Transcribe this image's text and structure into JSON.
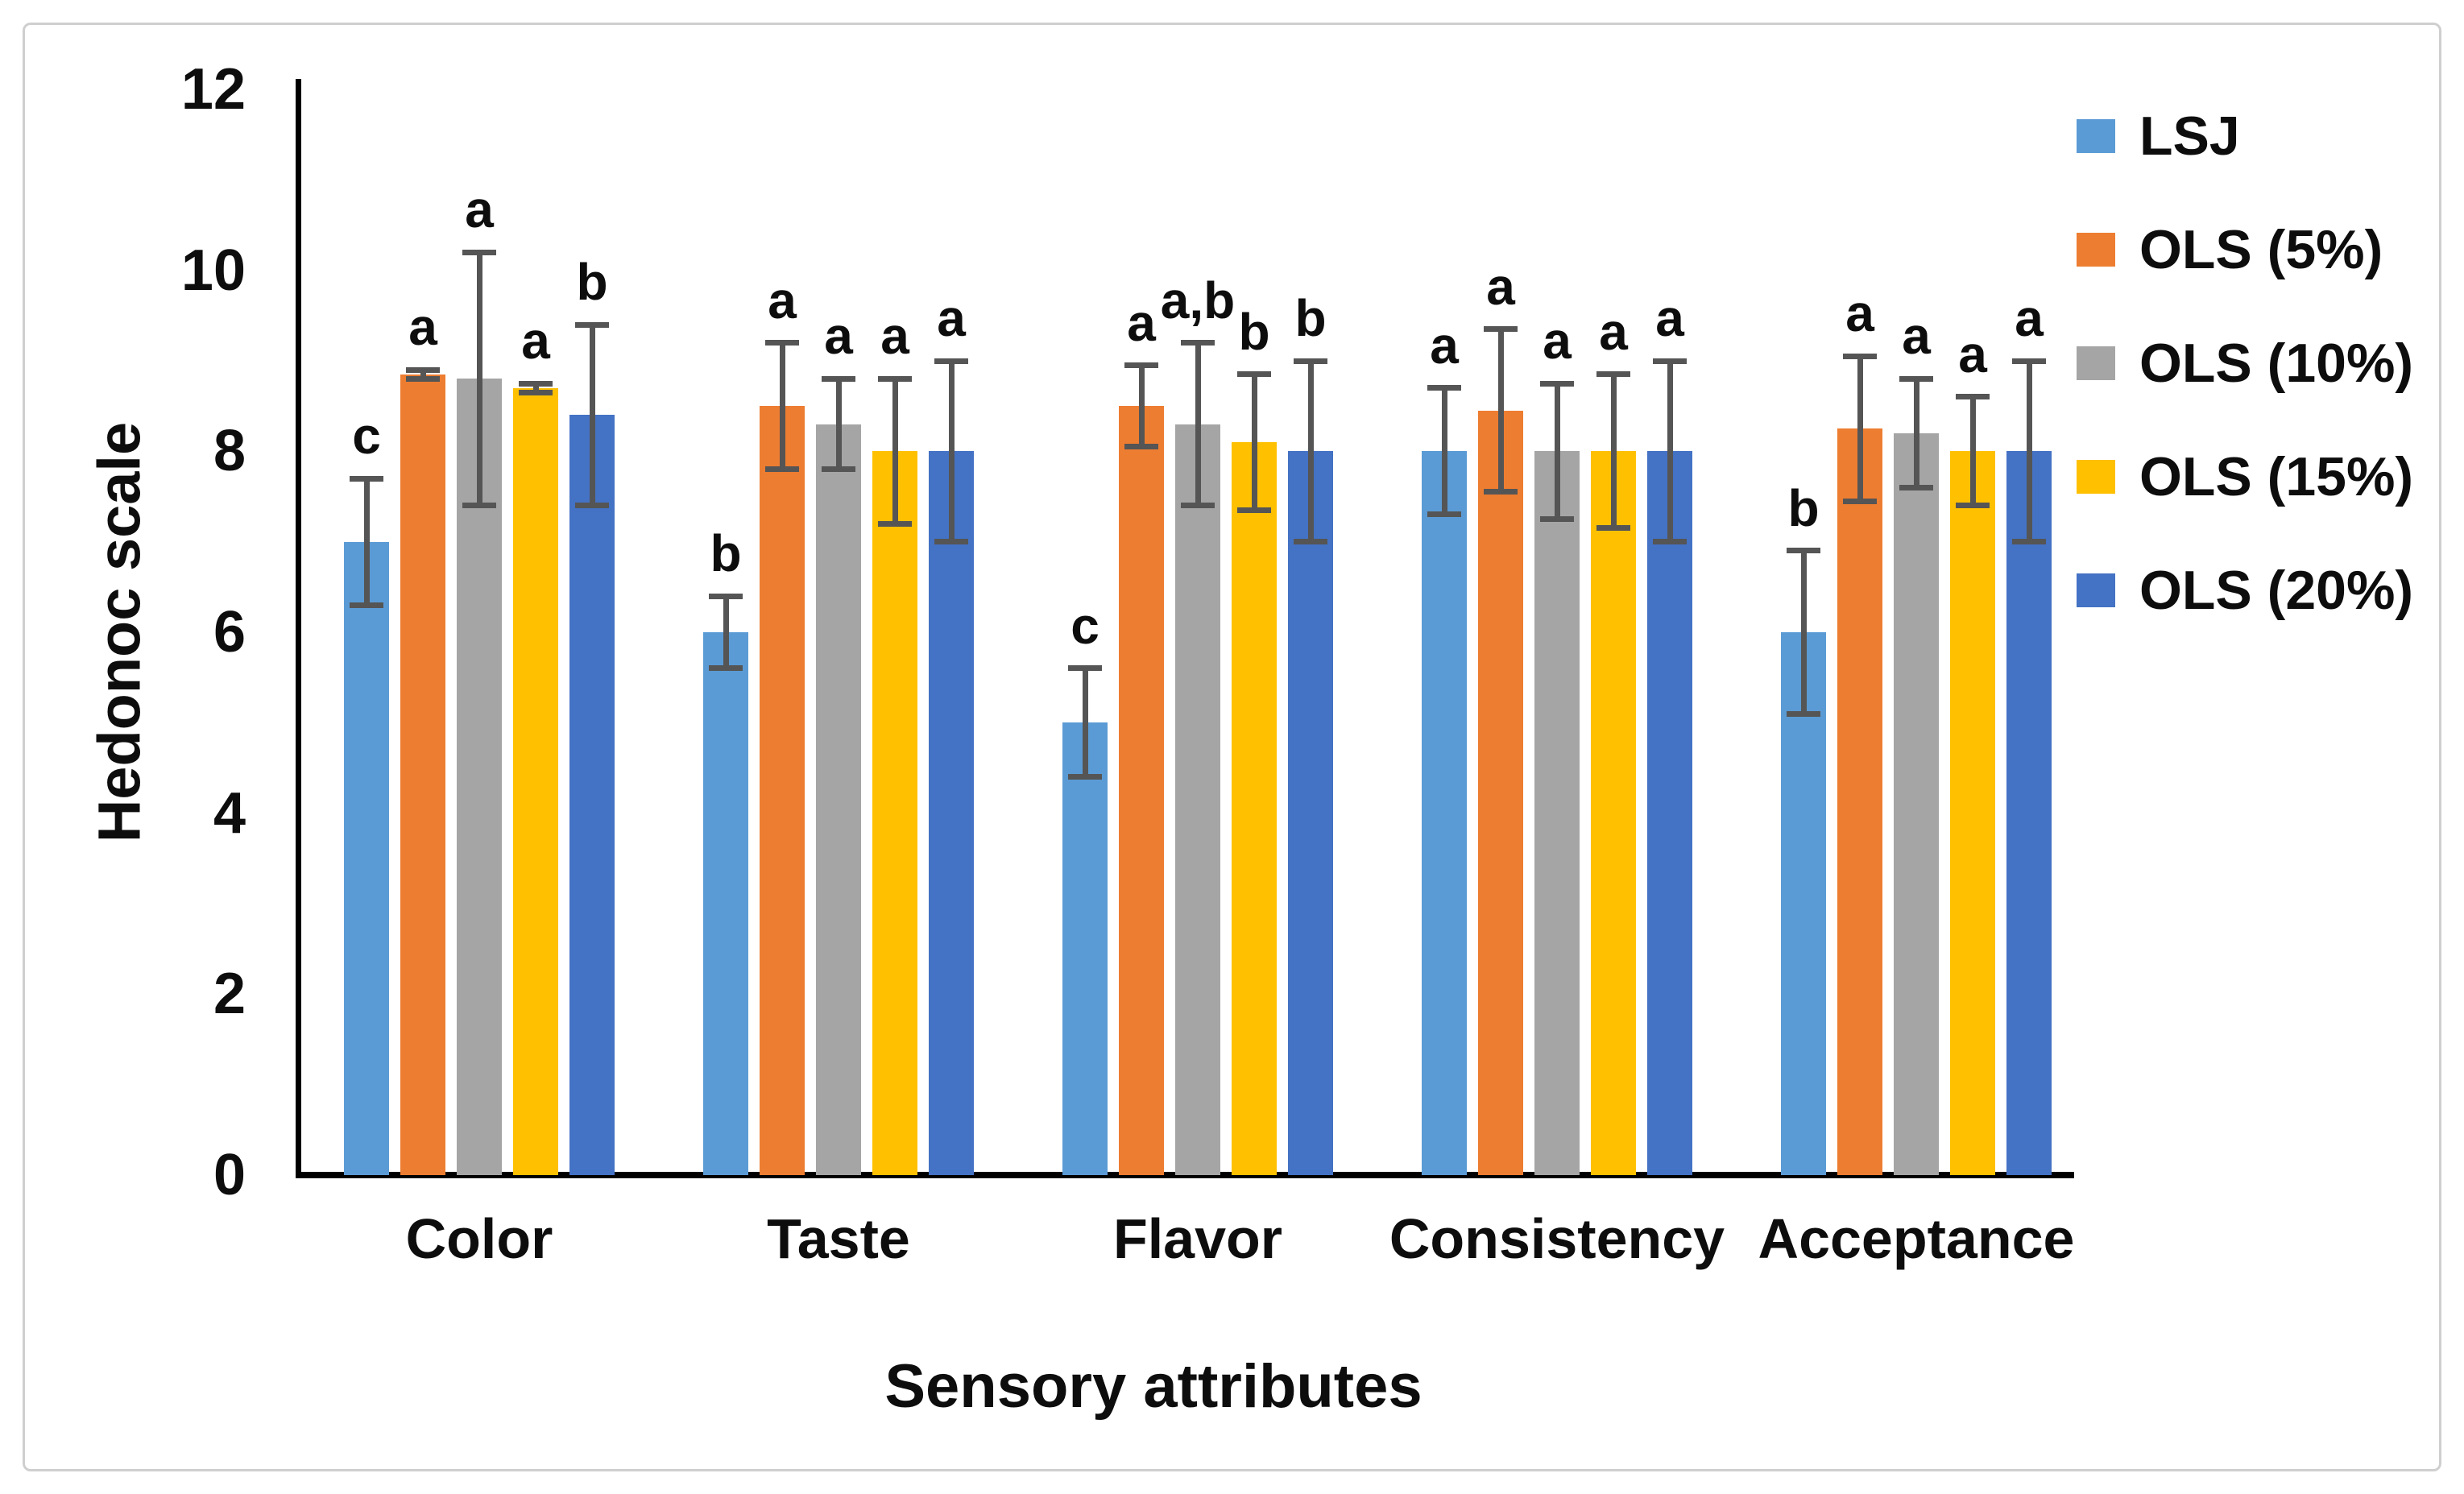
{
  "figure": {
    "ylabel": "Hedonoc scale",
    "xlabel": "Sensory attributes"
  },
  "chart_data": {
    "type": "bar",
    "title": "",
    "ylabel": "Hedonoc scale",
    "xlabel": "Sensory attributes",
    "ylim": [
      0,
      12
    ],
    "yticks": [
      0,
      2,
      4,
      6,
      8,
      10,
      12
    ],
    "grid": false,
    "legend_position": "top-right",
    "categories": [
      "Color",
      "Taste",
      "Flavor",
      "Consistency",
      "Acceptance"
    ],
    "series": [
      {
        "name": "LSJ",
        "color": "#5B9BD5",
        "values": [
          7.0,
          6.0,
          5.0,
          8.0,
          6.0
        ],
        "errors": [
          0.7,
          0.4,
          0.6,
          0.7,
          0.9
        ],
        "sig_letters": [
          "c",
          "b",
          "c",
          "a",
          "b"
        ]
      },
      {
        "name": "OLS (5%)",
        "color": "#ED7D31",
        "values": [
          8.85,
          8.5,
          8.5,
          8.45,
          8.25
        ],
        "errors": [
          0.05,
          0.7,
          0.45,
          0.9,
          0.8
        ],
        "sig_letters": [
          "a",
          "a",
          "a",
          "a",
          "a"
        ]
      },
      {
        "name": "OLS (10%)",
        "color": "#A5A5A5",
        "values": [
          8.8,
          8.3,
          8.3,
          8.0,
          8.2
        ],
        "errors": [
          1.4,
          0.5,
          0.9,
          0.75,
          0.6
        ],
        "sig_letters": [
          "a",
          "a",
          "a,b",
          "a",
          "a"
        ]
      },
      {
        "name": "OLS (15%)",
        "color": "#FFC000",
        "values": [
          8.7,
          8.0,
          8.1,
          8.0,
          8.0
        ],
        "errors": [
          0.05,
          0.8,
          0.75,
          0.85,
          0.6
        ],
        "sig_letters": [
          "a",
          "a",
          "b",
          "a",
          "a"
        ]
      },
      {
        "name": "OLS (20%)",
        "color": "#4472C4",
        "values": [
          8.4,
          8.0,
          8.0,
          8.0,
          8.0
        ],
        "errors": [
          1.0,
          1.0,
          1.0,
          1.0,
          1.0
        ],
        "sig_letters": [
          "b",
          "a",
          "b",
          "a",
          "a"
        ]
      }
    ],
    "error_bar_color": "#555555",
    "axis_color": "#000000",
    "background_color": "#FFFFFF",
    "border_color": "#CFCFCF"
  }
}
